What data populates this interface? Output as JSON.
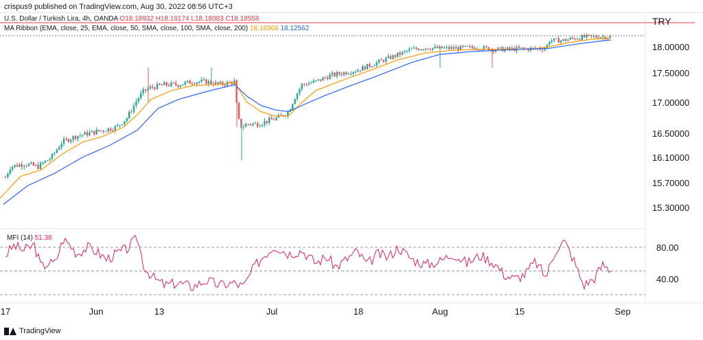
{
  "header": {
    "author": "crispus9",
    "published_text": "published on TradingView.com,",
    "date": "Aug 30, 2022 08:56 UTC+3"
  },
  "symbol": {
    "name": "U.S. Dollar / Turkish Lira",
    "interval": "4h",
    "exchange": "OANDA",
    "ohlc_text": "O18.18932  H18.19174  L18.18083  C18.18558"
  },
  "ma_ribbon": {
    "label": "MA Ribbon (EMA, close, 25, EMA, close, 50, SMA, close, 100, SMA, close, 200)",
    "value1": "18.16566",
    "value2": "18.12562"
  },
  "mfi": {
    "label": "MFI (14)",
    "value": "51.38"
  },
  "price_tag": "TRY",
  "footer": {
    "brand": "TradingView"
  },
  "colors": {
    "candle_up": "#26a69a",
    "candle_down": "#ef5350",
    "ema25": "#ff9800",
    "ema50": "#2962ff",
    "mfi": "#e91e63",
    "last_price_line": "#f23645"
  },
  "chart_data": [
    {
      "type": "candlestick",
      "panel": "price",
      "y_ticks": [
        "18.00000",
        "17.50000",
        "17.00000",
        "16.50000",
        "16.10000",
        "15.70000",
        "15.30000"
      ],
      "y_tick_values": [
        18.0,
        17.5,
        17.0,
        16.5,
        16.1,
        15.7,
        15.3
      ],
      "x_ticks": [
        "17",
        "Jun",
        "13",
        "Jul",
        "18",
        "Aug",
        "15",
        "Sep"
      ],
      "series": [
        {
          "name": "USD/TRY close (approx.)",
          "points": [
            [
              0,
              15.6
            ],
            [
              15,
              15.95
            ],
            [
              35,
              16.0
            ],
            [
              55,
              15.95
            ],
            [
              75,
              16.1
            ],
            [
              90,
              16.35
            ],
            [
              110,
              16.45
            ],
            [
              130,
              16.5
            ],
            [
              150,
              16.55
            ],
            [
              170,
              16.6
            ],
            [
              185,
              16.75
            ],
            [
              200,
              17.05
            ],
            [
              210,
              17.2
            ],
            [
              220,
              17.25
            ],
            [
              240,
              17.3
            ],
            [
              260,
              17.3
            ],
            [
              280,
              17.35
            ],
            [
              300,
              17.35
            ],
            [
              320,
              17.3
            ],
            [
              342,
              17.35
            ],
            [
              346,
              16.75
            ],
            [
              352,
              16.6
            ],
            [
              360,
              16.65
            ],
            [
              375,
              16.65
            ],
            [
              390,
              16.7
            ],
            [
              405,
              16.75
            ],
            [
              420,
              16.85
            ],
            [
              430,
              17.1
            ],
            [
              440,
              17.3
            ],
            [
              460,
              17.35
            ],
            [
              480,
              17.45
            ],
            [
              500,
              17.5
            ],
            [
              520,
              17.55
            ],
            [
              540,
              17.65
            ],
            [
              560,
              17.75
            ],
            [
              580,
              17.85
            ],
            [
              600,
              17.95
            ],
            [
              620,
              17.98
            ],
            [
              640,
              17.97
            ],
            [
              660,
              17.97
            ],
            [
              680,
              17.98
            ],
            [
              700,
              17.98
            ],
            [
              720,
              17.95
            ],
            [
              740,
              17.95
            ],
            [
              760,
              17.96
            ],
            [
              780,
              17.96
            ],
            [
              795,
              17.97
            ],
            [
              800,
              18.12
            ],
            [
              820,
              18.12
            ],
            [
              840,
              18.17
            ],
            [
              860,
              18.19
            ],
            [
              880,
              18.19
            ],
            [
              890,
              18.19
            ]
          ]
        },
        {
          "name": "EMA 25",
          "points": [
            [
              0,
              15.45
            ],
            [
              30,
              15.8
            ],
            [
              60,
              15.9
            ],
            [
              90,
              16.15
            ],
            [
              120,
              16.35
            ],
            [
              150,
              16.45
            ],
            [
              180,
              16.6
            ],
            [
              200,
              16.8
            ],
            [
              220,
              17.05
            ],
            [
              250,
              17.2
            ],
            [
              280,
              17.28
            ],
            [
              310,
              17.3
            ],
            [
              342,
              17.33
            ],
            [
              360,
              17.0
            ],
            [
              380,
              16.85
            ],
            [
              400,
              16.78
            ],
            [
              420,
              16.78
            ],
            [
              440,
              17.0
            ],
            [
              460,
              17.2
            ],
            [
              500,
              17.38
            ],
            [
              540,
              17.55
            ],
            [
              580,
              17.75
            ],
            [
              620,
              17.88
            ],
            [
              660,
              17.93
            ],
            [
              700,
              17.95
            ],
            [
              740,
              17.95
            ],
            [
              780,
              17.96
            ],
            [
              800,
              18.0
            ],
            [
              830,
              18.08
            ],
            [
              860,
              18.14
            ],
            [
              890,
              18.17
            ]
          ]
        },
        {
          "name": "EMA 50",
          "points": [
            [
              5,
              15.35
            ],
            [
              40,
              15.65
            ],
            [
              80,
              15.85
            ],
            [
              120,
              16.1
            ],
            [
              160,
              16.3
            ],
            [
              200,
              16.55
            ],
            [
              230,
              16.9
            ],
            [
              260,
              17.05
            ],
            [
              300,
              17.18
            ],
            [
              342,
              17.3
            ],
            [
              360,
              17.1
            ],
            [
              380,
              16.95
            ],
            [
              400,
              16.88
            ],
            [
              420,
              16.85
            ],
            [
              440,
              16.95
            ],
            [
              470,
              17.1
            ],
            [
              510,
              17.28
            ],
            [
              550,
              17.45
            ],
            [
              600,
              17.7
            ],
            [
              640,
              17.85
            ],
            [
              680,
              17.9
            ],
            [
              720,
              17.93
            ],
            [
              760,
              17.95
            ],
            [
              800,
              17.97
            ],
            [
              840,
              18.05
            ],
            [
              870,
              18.1
            ],
            [
              890,
              18.13
            ]
          ]
        }
      ]
    },
    {
      "type": "line",
      "panel": "indicator",
      "title": "MFI (14)",
      "y_ticks": [
        "80.00",
        "40.00"
      ],
      "y_tick_values": [
        80,
        40
      ],
      "series": [
        {
          "name": "MFI",
          "points": [
            [
              8,
              70
            ],
            [
              20,
              82
            ],
            [
              35,
              76
            ],
            [
              50,
              83
            ],
            [
              60,
              55
            ],
            [
              70,
              60
            ],
            [
              80,
              60
            ],
            [
              92,
              90
            ],
            [
              100,
              85
            ],
            [
              112,
              72
            ],
            [
              128,
              80
            ],
            [
              140,
              75
            ],
            [
              155,
              65
            ],
            [
              170,
              72
            ],
            [
              185,
              78
            ],
            [
              200,
              92
            ],
            [
              210,
              55
            ],
            [
              225,
              40
            ],
            [
              240,
              32
            ],
            [
              260,
              35
            ],
            [
              280,
              30
            ],
            [
              300,
              38
            ],
            [
              320,
              32
            ],
            [
              340,
              35
            ],
            [
              355,
              30
            ],
            [
              370,
              55
            ],
            [
              385,
              70
            ],
            [
              400,
              82
            ],
            [
              420,
              72
            ],
            [
              440,
              76
            ],
            [
              460,
              60
            ],
            [
              475,
              68
            ],
            [
              490,
              55
            ],
            [
              505,
              65
            ],
            [
              520,
              75
            ],
            [
              535,
              58
            ],
            [
              550,
              72
            ],
            [
              565,
              67
            ],
            [
              580,
              80
            ],
            [
              600,
              65
            ],
            [
              620,
              58
            ],
            [
              640,
              62
            ],
            [
              660,
              72
            ],
            [
              680,
              60
            ],
            [
              700,
              70
            ],
            [
              720,
              60
            ],
            [
              735,
              45
            ],
            [
              750,
              40
            ],
            [
              765,
              46
            ],
            [
              780,
              62
            ],
            [
              795,
              42
            ],
            [
              810,
              78
            ],
            [
              822,
              88
            ],
            [
              835,
              65
            ],
            [
              850,
              32
            ],
            [
              865,
              40
            ],
            [
              878,
              58
            ],
            [
              890,
              51
            ]
          ]
        }
      ],
      "last_value": 51.38
    }
  ]
}
